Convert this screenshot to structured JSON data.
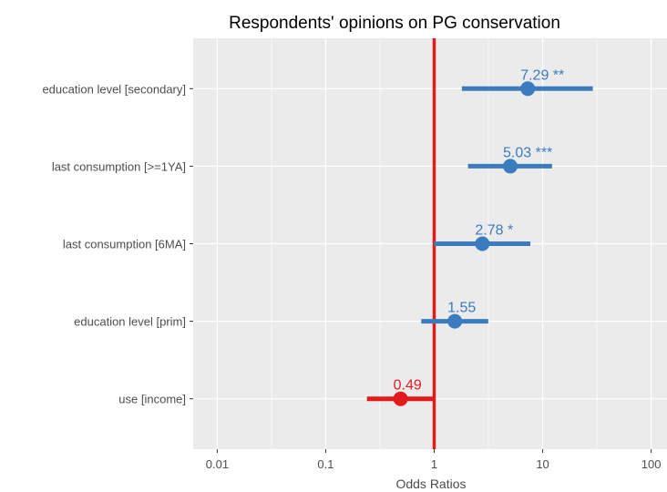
{
  "chart_data": {
    "type": "forest",
    "title": "Respondents' opinions on PG conservation",
    "xlabel": "Odds Ratios",
    "ylabel": "",
    "x_scale": "log",
    "xlim": [
      0.006,
      140
    ],
    "x_ticks": [
      0.01,
      0.1,
      1,
      10,
      100
    ],
    "x_tick_labels": [
      "0.01",
      "0.1",
      "1",
      "10",
      "100"
    ],
    "reference_line": 1,
    "grid": true,
    "legend": "none",
    "colors": {
      "positive": "#3b7bbf",
      "negative": "#e31a1c",
      "reference": "#e31a1c",
      "panel": "#ebebeb",
      "grid": "#ffffff",
      "text": "#4d4d4d"
    },
    "terms": [
      {
        "label": "education level [secondary]",
        "estimate": 7.29,
        "ci_low": 1.8,
        "ci_high": 29,
        "value_label": "7.29 **"
      },
      {
        "label": "last consumption [>=1YA]",
        "estimate": 5.03,
        "ci_low": 2.05,
        "ci_high": 12.2,
        "value_label": "5.03 ***"
      },
      {
        "label": "last consumption [6MA]",
        "estimate": 2.78,
        "ci_low": 1.0,
        "ci_high": 7.7,
        "value_label": "2.78 *"
      },
      {
        "label": "education level [prim]",
        "estimate": 1.55,
        "ci_low": 0.76,
        "ci_high": 3.15,
        "value_label": "1.55"
      },
      {
        "label": "use [income]",
        "estimate": 0.49,
        "ci_low": 0.24,
        "ci_high": 1.0,
        "value_label": "0.49"
      }
    ]
  }
}
